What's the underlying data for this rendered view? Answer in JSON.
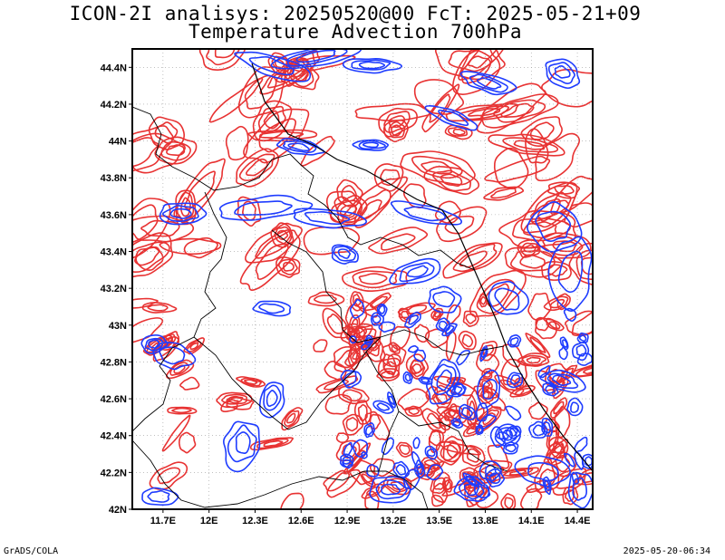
{
  "title": {
    "line1": "ICON-2I analisys: 20250520@00 FcT: 2025-05-21+09",
    "line2": "Temperature Advection 700hPa"
  },
  "map": {
    "lat_ticks": [
      "44.4N",
      "44.2N",
      "44N",
      "43.8N",
      "43.6N",
      "43.4N",
      "43.2N",
      "43N",
      "42.8N",
      "42.6N",
      "42.4N",
      "42.2N",
      "42N"
    ],
    "lon_ticks": [
      "11.7E",
      "12E",
      "12.3E",
      "12.6E",
      "12.9E",
      "13.2E",
      "13.5E",
      "13.8E",
      "14.1E",
      "14.4E"
    ],
    "lat_range": [
      42.0,
      44.5
    ],
    "lon_range": [
      11.5,
      14.5
    ],
    "colors": {
      "warm_advection": "#e83232",
      "cold_advection": "#1e3cff",
      "borders": "#000000",
      "grid": "#9a9a9a"
    }
  },
  "footer": {
    "left": "GrADS/COLA",
    "right": "2025-05-20-06:34"
  }
}
